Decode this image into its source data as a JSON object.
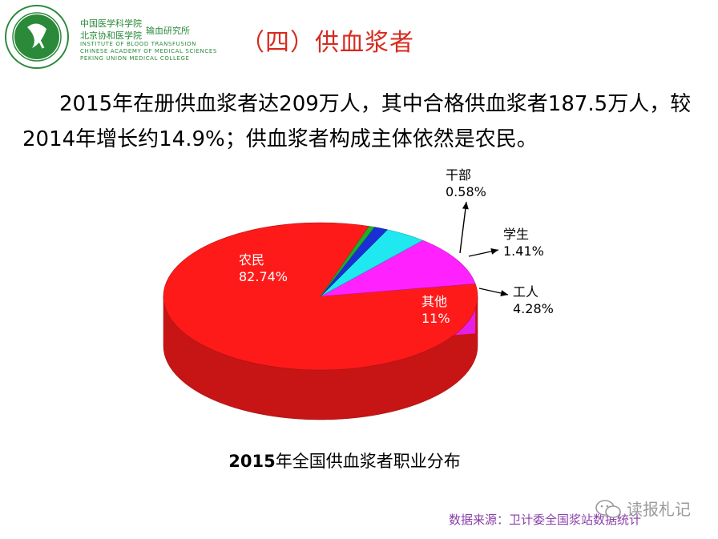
{
  "header": {
    "inst_cn_line1": "中国医学科学院",
    "inst_cn_line2": "北京协和医学院",
    "inst_dept": "输血研究所",
    "inst_en_line1": "INSTITUTE OF BLOOD TRANSFUSION",
    "inst_en_line2": "CHINESE ACADEMY OF MEDICAL SCIENCES",
    "inst_en_line3": "PEKING UNION MEDICAL COLLEGE"
  },
  "slide_title": "（四）供血浆者",
  "body_text": "2015年在册供血浆者达209万人，其中合格供血浆者187.5万人，较2014年增长约14.9%；供血浆者构成主体依然是农民。",
  "chart_data": {
    "type": "pie",
    "title": "",
    "slices": [
      {
        "label": "农民",
        "value": 82.74,
        "display": "82.74%",
        "color": "#ff1a1a"
      },
      {
        "label": "其他",
        "value": 11,
        "display": "11%",
        "color": "#ff22ff"
      },
      {
        "label": "工人",
        "value": 4.28,
        "display": "4.28%",
        "color": "#1fe8f0"
      },
      {
        "label": "学生",
        "value": 1.41,
        "display": "1.41%",
        "color": "#1a2fd6"
      },
      {
        "label": "干部",
        "value": 0.58,
        "display": "0.58%",
        "color": "#1fb02a"
      }
    ],
    "caption_bold": "2015",
    "caption_rest": "年全国供血浆者职业分布"
  },
  "source_note": "数据来源：卫计委全国浆站数据统计",
  "watermark": "读报札记"
}
